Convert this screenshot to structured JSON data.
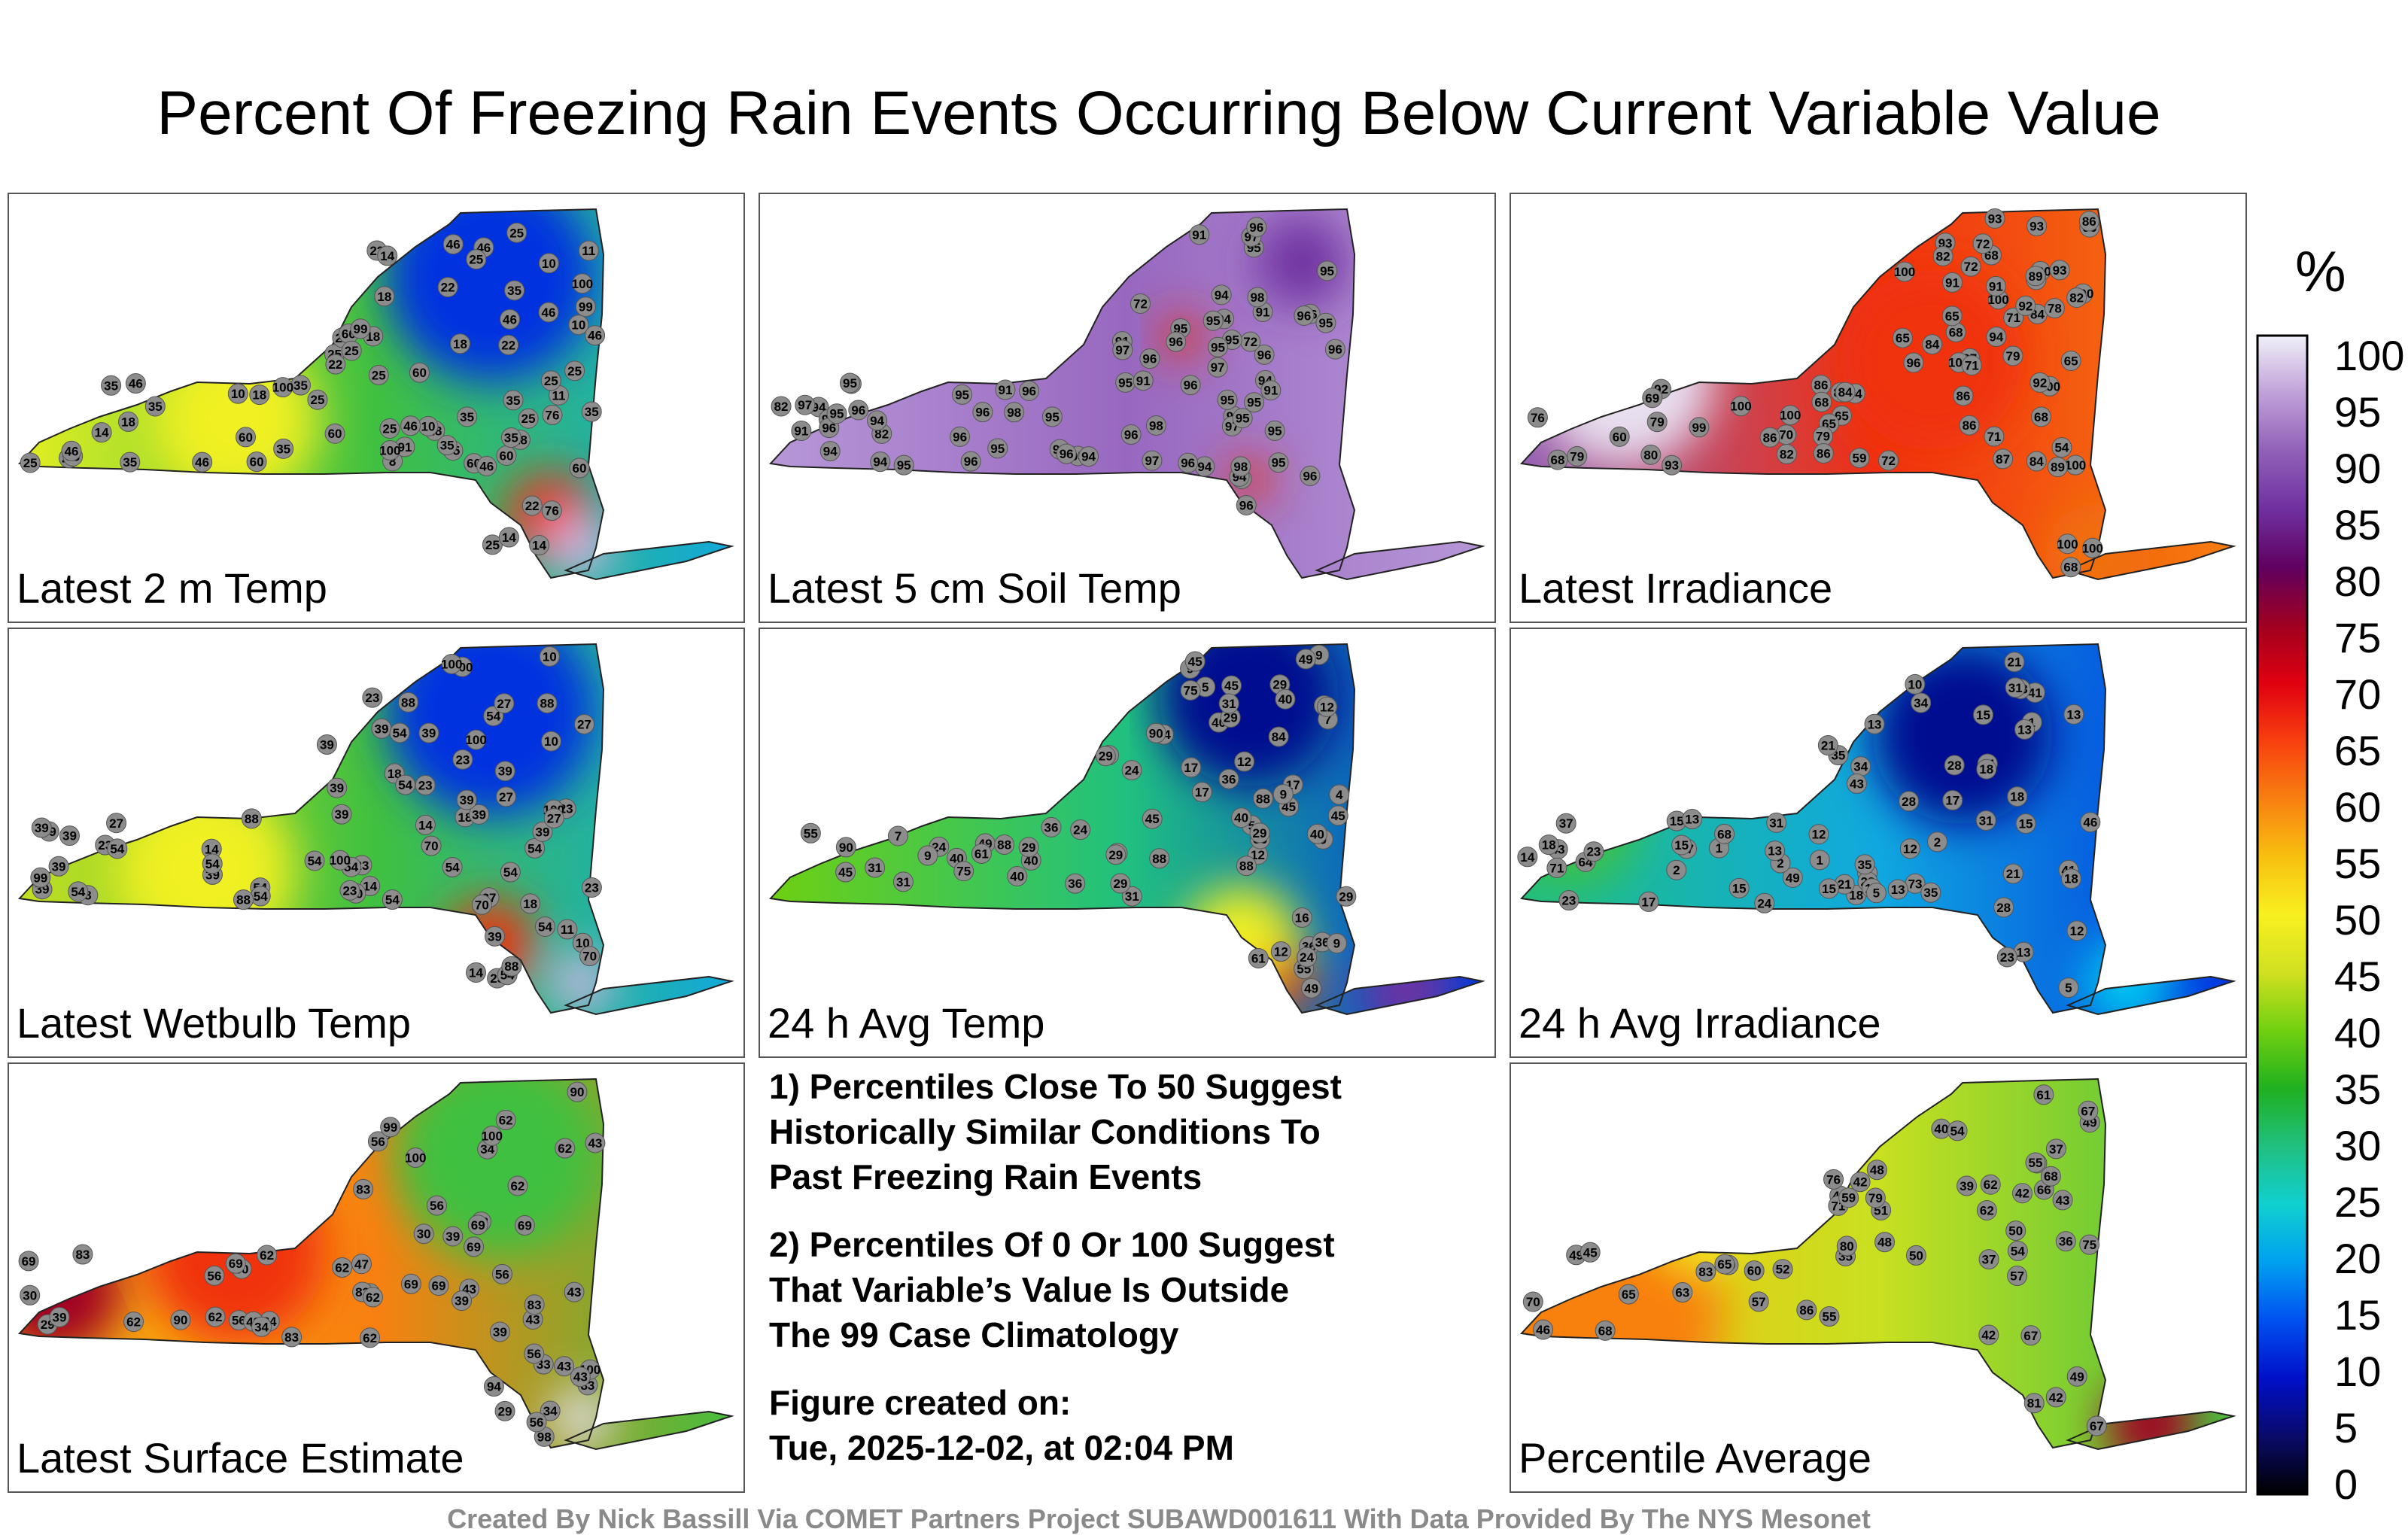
{
  "title": "Percent Of Freezing Rain Events Occurring Below Current Variable Value",
  "panels": [
    {
      "label": "Latest 2 m Temp",
      "values": [
        "14",
        "10",
        "10",
        "18",
        "14",
        "18",
        "25",
        "46",
        "25",
        "22",
        "10",
        "8",
        "10",
        "25",
        "22",
        "35",
        "11",
        "91",
        "46",
        "46",
        "60",
        "60",
        "46",
        "35",
        "25",
        "18",
        "22",
        "35",
        "11",
        "18",
        "60",
        "22",
        "14",
        "35",
        "25",
        "46",
        "14",
        "35",
        "22",
        "25",
        "35",
        "25",
        "18",
        "25",
        "22",
        "60",
        "18",
        "14",
        "18",
        "35",
        "25",
        "35",
        "35",
        "46",
        "76",
        "25",
        "60",
        "35",
        "60",
        "46",
        "35",
        "46",
        "60",
        "25",
        "60",
        "76",
        "46",
        "99",
        "99",
        "100",
        "100",
        "100",
        "35",
        "46",
        "22",
        "25",
        "35"
      ]
    },
    {
      "label": "Latest 5 cm Soil Temp",
      "values": [
        "91",
        "94",
        "95",
        "82",
        "91",
        "95",
        "94",
        "97",
        "96",
        "95",
        "98",
        "91",
        "95",
        "96",
        "96",
        "95",
        "72",
        "91",
        "95",
        "94",
        "82",
        "96",
        "96",
        "96",
        "95",
        "94",
        "94",
        "95",
        "91",
        "95",
        "94",
        "96",
        "95",
        "97",
        "96",
        "95",
        "91",
        "96",
        "95",
        "94",
        "72",
        "96",
        "96",
        "91",
        "95",
        "96",
        "97",
        "97",
        "95",
        "96",
        "95",
        "95",
        "94",
        "98",
        "98",
        "95",
        "97",
        "96",
        "94",
        "91",
        "96",
        "95",
        "95",
        "95",
        "94",
        "96",
        "91",
        "95",
        "96",
        "96",
        "95",
        "97",
        "96",
        "95",
        "98"
      ]
    },
    {
      "label": "Latest Irradiance",
      "values": [
        "96",
        "100",
        "91",
        "86",
        "100",
        "79",
        "76",
        "86",
        "100",
        "87",
        "93",
        "91",
        "97",
        "100",
        "71",
        "68",
        "93",
        "68",
        "71",
        "84",
        "86",
        "65",
        "100",
        "100",
        "99",
        "100",
        "92",
        "93",
        "96",
        "86",
        "72",
        "65",
        "100",
        "100",
        "78",
        "93",
        "89",
        "86",
        "79",
        "71",
        "68",
        "82",
        "100",
        "86",
        "100",
        "89",
        "70",
        "68",
        "64",
        "65",
        "92",
        "84",
        "94",
        "93",
        "79",
        "84",
        "86",
        "82",
        "92",
        "72",
        "79",
        "65",
        "54",
        "60",
        "68",
        "59",
        "80",
        "86",
        "82",
        "72",
        "84",
        "68",
        "65",
        "69"
      ]
    },
    {
      "label": "Latest Wetbulb Temp",
      "values": [
        "14",
        "10",
        "10",
        "14",
        "18",
        "23",
        "8",
        "54",
        "27",
        "11",
        "18",
        "39",
        "99",
        "54",
        "54",
        "39",
        "23",
        "10",
        "23",
        "39",
        "54",
        "23",
        "27",
        "27",
        "14",
        "10",
        "23",
        "54",
        "39",
        "54",
        "39",
        "18",
        "54",
        "23",
        "88",
        "39",
        "54",
        "54",
        "39",
        "23",
        "39",
        "27",
        "39",
        "54",
        "70",
        "54",
        "88",
        "88",
        "39",
        "54",
        "39",
        "54",
        "39",
        "70",
        "88",
        "100",
        "100",
        "100",
        "100",
        "39",
        "54",
        "23",
        "27",
        "39",
        "54",
        "39",
        "23",
        "14",
        "27",
        "39",
        "54",
        "70",
        "88",
        "100"
      ]
    },
    {
      "label": "24 h Avg Temp",
      "values": [
        "12",
        "9",
        "4",
        "17",
        "7",
        "24",
        "31",
        "29",
        "12",
        "5",
        "9",
        "7",
        "5",
        "40",
        "31",
        "16",
        "9",
        "9",
        "17",
        "12",
        "49",
        "45",
        "45",
        "40",
        "40",
        "40",
        "36",
        "36",
        "24",
        "29",
        "29",
        "45",
        "40",
        "36",
        "36",
        "29",
        "29",
        "9",
        "17",
        "24",
        "31",
        "29",
        "40",
        "49",
        "55",
        "45",
        "40",
        "36",
        "31",
        "24",
        "29",
        "45",
        "55",
        "61",
        "75",
        "84",
        "88",
        "90",
        "88",
        "36",
        "31",
        "29",
        "24",
        "17",
        "12",
        "9",
        "40",
        "45",
        "49",
        "61",
        "75",
        "90",
        "88",
        "88"
      ]
    },
    {
      "label": "24 h Avg Irradiance",
      "values": [
        "37",
        "34",
        "46",
        "31",
        "18",
        "12",
        "43",
        "34",
        "17",
        "2",
        "1",
        "2",
        "31",
        "23",
        "49",
        "14",
        "15",
        "1",
        "2",
        "1",
        "13",
        "12",
        "2",
        "71",
        "73",
        "64",
        "41",
        "15",
        "35",
        "12",
        "15",
        "13",
        "17",
        "17",
        "68",
        "43",
        "35",
        "23",
        "24",
        "21",
        "13",
        "15",
        "13",
        "5",
        "41",
        "35",
        "28",
        "18",
        "13",
        "13",
        "31",
        "24",
        "21",
        "18",
        "13",
        "10",
        "5",
        "23",
        "28",
        "21",
        "15",
        "18",
        "28",
        "23",
        "21",
        "18",
        "13",
        "12",
        "15"
      ]
    },
    {
      "label": "Latest Surface Estimate",
      "values": [
        "34",
        "30",
        "29",
        "34",
        "33",
        "62",
        "43",
        "39",
        "29",
        "47",
        "34",
        "94",
        "83",
        "69",
        "83",
        "62",
        "56",
        "43",
        "39",
        "30",
        "83",
        "56",
        "62",
        "69",
        "69",
        "62",
        "56",
        "43",
        "39",
        "43",
        "99",
        "83",
        "43",
        "62",
        "69",
        "62",
        "56",
        "62",
        "69",
        "90",
        "62",
        "94",
        "56",
        "69",
        "98",
        "100",
        "100",
        "100",
        "83",
        "62",
        "56",
        "43",
        "39",
        "30",
        "34",
        "43",
        "56",
        "62",
        "69",
        "83",
        "90"
      ]
    },
    {
      "label": "Percentile Average",
      "values": [
        "43",
        "65",
        "43",
        "39",
        "37",
        "63",
        "49",
        "46",
        "35",
        "42",
        "49",
        "42",
        "37",
        "36",
        "42",
        "86",
        "71",
        "70",
        "66",
        "62",
        "49",
        "45",
        "40",
        "48",
        "76",
        "67",
        "65",
        "57",
        "51",
        "50",
        "42",
        "48",
        "55",
        "60",
        "57",
        "59",
        "62",
        "61",
        "50",
        "52",
        "54",
        "49",
        "54",
        "55",
        "49",
        "68",
        "67",
        "75",
        "80",
        "79",
        "67",
        "68",
        "81",
        "83"
      ]
    }
  ],
  "notes": {
    "note1_line1": "1) Percentiles Close To 50 Suggest",
    "note1_line2": "Historically Similar Conditions To",
    "note1_line3": "Past Freezing Rain Events",
    "note2_line1": "2) Percentiles Of 0 Or 100 Suggest",
    "note2_line2": "That Variable’s Value Is Outside",
    "note2_line3": "The 99 Case Climatology",
    "created_label": "Figure created on:",
    "created_value": "Tue, 2025-12-02, at 02:04 PM"
  },
  "colorbar": {
    "unit": "%",
    "ticks": [
      "100",
      "95",
      "90",
      "85",
      "80",
      "75",
      "70",
      "65",
      "60",
      "55",
      "50",
      "45",
      "40",
      "35",
      "30",
      "25",
      "20",
      "15",
      "10",
      "5",
      "0"
    ],
    "colors": [
      "#000000",
      "#0a0a6a",
      "#0010c8",
      "#0050f0",
      "#00a0f0",
      "#10d0d0",
      "#20c080",
      "#20b020",
      "#70d010",
      "#d0e020",
      "#f8f020",
      "#f8c010",
      "#f88010",
      "#f84010",
      "#e00010",
      "#a00020",
      "#600060",
      "#7030a0",
      "#9060b8",
      "#c0a0d8",
      "#f0f0f8"
    ]
  },
  "credit": "Created By Nick Bassill Via COMET Partners Project SUBAWD001611 With Data Provided By The NYS Mesonet"
}
